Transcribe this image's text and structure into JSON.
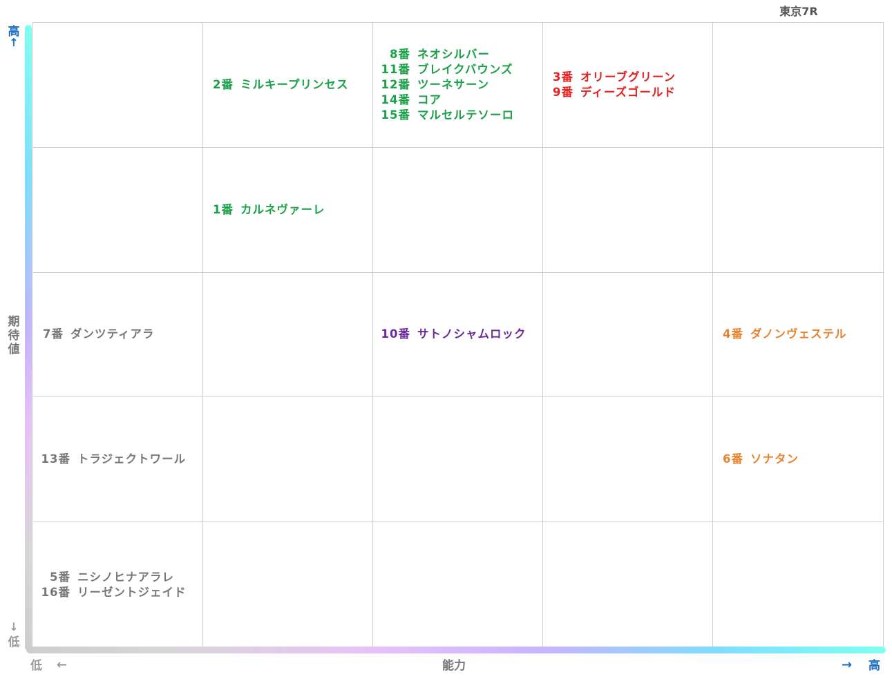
{
  "race_title": "東京7R",
  "colors": {
    "green": "#1aa046",
    "red": "#e61e1e",
    "purple": "#6a2a9a",
    "orange": "#e6842e",
    "gray": "#777777",
    "axis_high": "#1a6fc0",
    "axis_low": "#999999"
  },
  "axes": {
    "y_label": "期待値",
    "y_high": "高",
    "y_high_arrow": "↑",
    "y_low": "低",
    "y_low_arrow": "↓",
    "x_label": "能力",
    "x_low": "低",
    "x_low_arrow": "←",
    "x_high": "高",
    "x_high_arrow": "→"
  },
  "chart_data": {
    "type": "table",
    "title": "東京7R",
    "xlabel": "能力",
    "ylabel": "期待値",
    "columns": 5,
    "rows": 5,
    "grid": true,
    "note_axis": "row 1 = top (highest 期待値), col 1 = left (lowest 能力)",
    "cells": [
      {
        "row": 1,
        "col": 2,
        "color": "green",
        "entries": [
          {
            "num": "2番",
            "name": "ミルキープリンセス"
          }
        ]
      },
      {
        "row": 1,
        "col": 3,
        "color": "green",
        "entries": [
          {
            "num": "8番",
            "name": "ネオシルバー"
          },
          {
            "num": "11番",
            "name": "ブレイクバウンズ"
          },
          {
            "num": "12番",
            "name": "ツーネサーン"
          },
          {
            "num": "14番",
            "name": "コア"
          },
          {
            "num": "15番",
            "name": "マルセルテソーロ"
          }
        ]
      },
      {
        "row": 1,
        "col": 4,
        "color": "red",
        "entries": [
          {
            "num": "3番",
            "name": "オリーブグリーン"
          },
          {
            "num": "9番",
            "name": "ディーズゴールド"
          }
        ]
      },
      {
        "row": 2,
        "col": 2,
        "color": "green",
        "entries": [
          {
            "num": "1番",
            "name": "カルネヴァーレ"
          }
        ]
      },
      {
        "row": 3,
        "col": 1,
        "color": "gray",
        "entries": [
          {
            "num": "7番",
            "name": "ダンツティアラ"
          }
        ]
      },
      {
        "row": 3,
        "col": 3,
        "color": "purple",
        "entries": [
          {
            "num": "10番",
            "name": "サトノシャムロック"
          }
        ]
      },
      {
        "row": 3,
        "col": 5,
        "color": "orange",
        "entries": [
          {
            "num": "4番",
            "name": "ダノンヴェステル"
          }
        ]
      },
      {
        "row": 4,
        "col": 1,
        "color": "gray",
        "entries": [
          {
            "num": "13番",
            "name": "トラジェクトワール"
          }
        ]
      },
      {
        "row": 4,
        "col": 5,
        "color": "orange",
        "entries": [
          {
            "num": "6番",
            "name": "ソナタン"
          }
        ]
      },
      {
        "row": 5,
        "col": 1,
        "color": "gray",
        "entries": [
          {
            "num": "5番",
            "name": "ニシノヒナアラレ"
          },
          {
            "num": "16番",
            "name": "リーゼントジェイド"
          }
        ]
      }
    ]
  }
}
